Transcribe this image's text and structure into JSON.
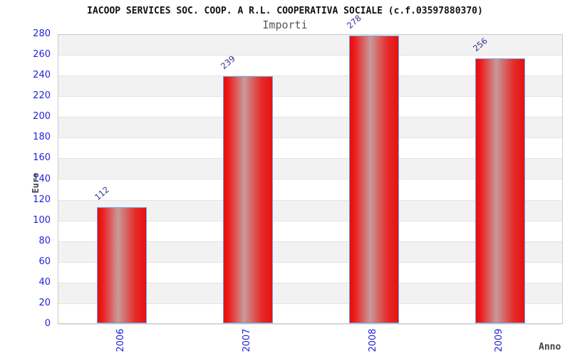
{
  "page": {
    "title": "IACOOP SERVICES SOC. COOP. A R.L. COOPERATIVA SOCIALE (c.f.03597880370)",
    "subtitle": "Importi"
  },
  "chart_data": {
    "type": "bar",
    "title": "Importi",
    "categories": [
      "2006",
      "2007",
      "2008",
      "2009"
    ],
    "values": [
      112,
      239,
      278,
      256
    ],
    "xlabel": "Anno",
    "ylabel": "Euro",
    "ylim": [
      0,
      280
    ],
    "ytick_step": 20,
    "ytick_labels": [
      "0",
      "20",
      "40",
      "60",
      "80",
      "100",
      "120",
      "140",
      "160",
      "180",
      "200",
      "220",
      "240",
      "260",
      "280"
    ],
    "grid": "alternating horizontal gray/white bands per 20-unit interval, gray band at top",
    "legend_position": "none",
    "value_labels_rotation_deg": -40,
    "xtick_rotation_deg": -90,
    "colors": {
      "bar_edge_red": "#e81111",
      "bar_center_highlight": "#c89a9a",
      "bar_border_blue": "#6ba3e8",
      "tick_label_blue": "#2222dd",
      "value_label_navy": "#333399",
      "band_gray": "#f2f2f2",
      "plot_border_gray": "#c9c9c9",
      "title_black": "#111111",
      "subtitle_gray": "#555555",
      "axis_name_gray": "#444444"
    }
  }
}
